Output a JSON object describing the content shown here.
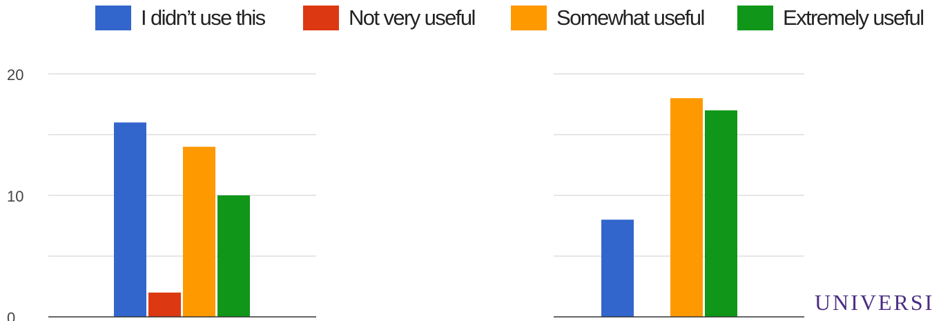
{
  "legend": {
    "items": [
      {
        "label": "I didn’t use this",
        "color": "#3366cc"
      },
      {
        "label": "Not very useful",
        "color": "#dc3912"
      },
      {
        "label": "Somewhat useful",
        "color": "#ff9900"
      },
      {
        "label": "Extremely useful",
        "color": "#109618"
      }
    ]
  },
  "chart_data": [
    {
      "type": "bar",
      "categories": [
        "I didn’t use this",
        "Not very useful",
        "Somewhat useful",
        "Extremely useful"
      ],
      "values": [
        16,
        2,
        14,
        10
      ],
      "colors": [
        "#3366cc",
        "#dc3912",
        "#ff9900",
        "#109618"
      ],
      "ylim": [
        0,
        20
      ],
      "yticks": [
        0,
        10,
        20
      ],
      "grid": true,
      "legend_position": "top"
    },
    {
      "type": "bar",
      "categories": [
        "I didn’t use this",
        "Not very useful",
        "Somewhat useful",
        "Extremely useful"
      ],
      "values": [
        8,
        0,
        18,
        17
      ],
      "colors": [
        "#3366cc",
        "#dc3912",
        "#ff9900",
        "#109618"
      ],
      "ylim": [
        0,
        20
      ],
      "yticks": [],
      "grid": true,
      "legend_position": "top"
    }
  ],
  "watermark": {
    "text": "UNIVERSI"
  }
}
